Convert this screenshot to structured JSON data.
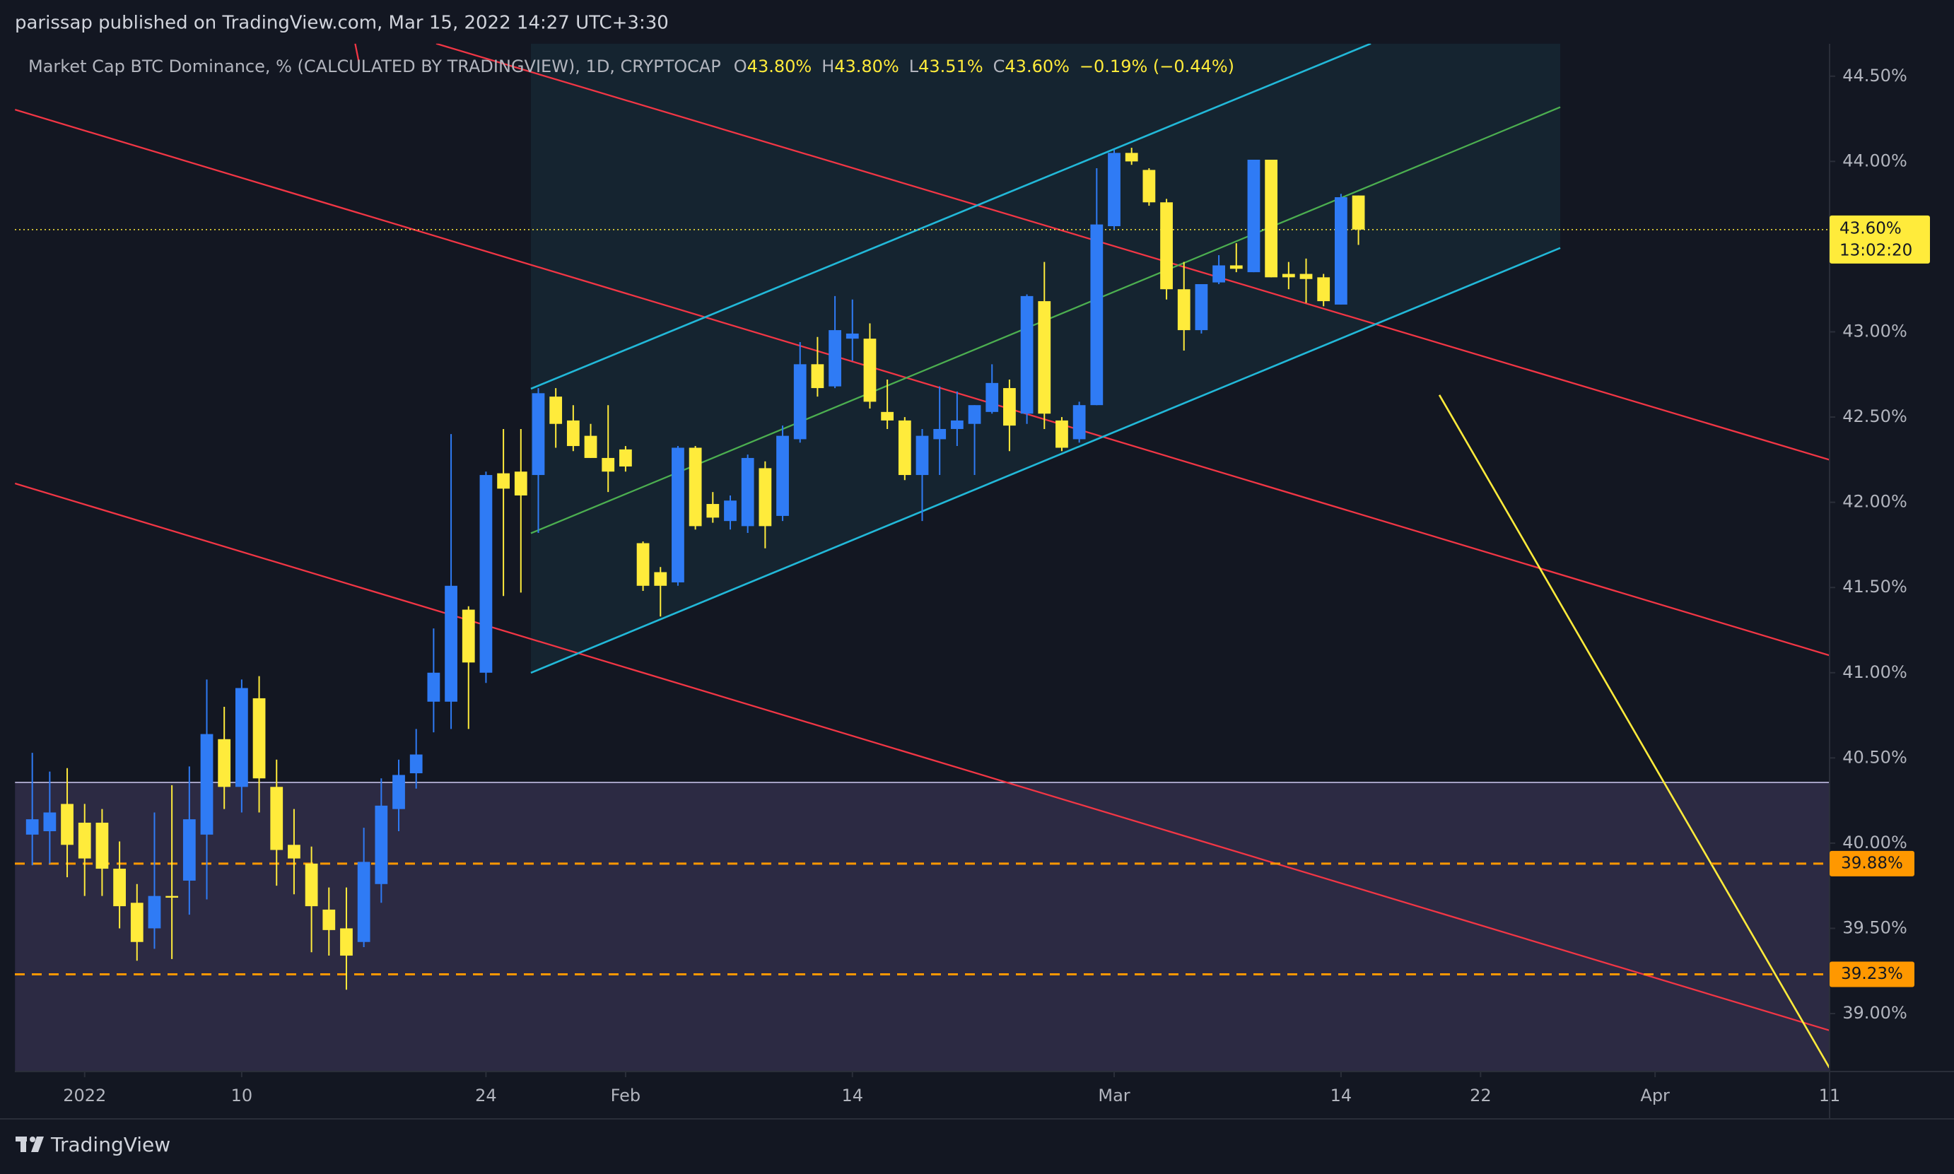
{
  "header": "parissap published on TradingView.com, Mar 15, 2022 14:27 UTC+3:30",
  "footer": "TradingView",
  "chart_data": {
    "type": "candlestick",
    "title": "Market Cap BTC Dominance, % (CALCULATED BY TRADINGVIEW), 1D, CRYPTOCAP",
    "legend": [
      {
        "key": "O",
        "value": "43.80%"
      },
      {
        "key": "H",
        "value": "43.80%"
      },
      {
        "key": "L",
        "value": "43.51%"
      },
      {
        "key": "C",
        "value": "43.60%"
      }
    ],
    "change": "−0.19% (−0.44%)",
    "x": [
      "2021-12-29",
      "2021-12-30",
      "2021-12-31",
      "2022-01-01",
      "2022-01-02",
      "2022-01-03",
      "2022-01-04",
      "2022-01-05",
      "2022-01-06",
      "2022-01-07",
      "2022-01-08",
      "2022-01-09",
      "2022-01-10",
      "2022-01-11",
      "2022-01-12",
      "2022-01-13",
      "2022-01-14",
      "2022-01-15",
      "2022-01-16",
      "2022-01-17",
      "2022-01-18",
      "2022-01-19",
      "2022-01-20",
      "2022-01-21",
      "2022-01-22",
      "2022-01-23",
      "2022-01-24",
      "2022-01-25",
      "2022-01-26",
      "2022-01-27",
      "2022-01-28",
      "2022-01-29",
      "2022-01-30",
      "2022-01-31",
      "2022-02-01",
      "2022-02-02",
      "2022-02-03",
      "2022-02-04",
      "2022-02-05",
      "2022-02-06",
      "2022-02-07",
      "2022-02-08",
      "2022-02-09",
      "2022-02-10",
      "2022-02-11",
      "2022-02-12",
      "2022-02-13",
      "2022-02-14",
      "2022-02-15",
      "2022-02-16",
      "2022-02-17",
      "2022-02-18",
      "2022-02-19",
      "2022-02-20",
      "2022-02-21",
      "2022-02-22",
      "2022-02-23",
      "2022-02-24",
      "2022-02-25",
      "2022-02-26",
      "2022-02-27",
      "2022-02-28",
      "2022-03-01",
      "2022-03-02",
      "2022-03-03",
      "2022-03-04",
      "2022-03-05",
      "2022-03-06",
      "2022-03-07",
      "2022-03-08",
      "2022-03-09",
      "2022-03-10",
      "2022-03-11",
      "2022-03-12",
      "2022-03-13",
      "2022-03-14",
      "2022-03-15"
    ],
    "open": [
      40.05,
      40.07,
      40.23,
      40.12,
      40.12,
      39.85,
      39.65,
      39.5,
      39.69,
      39.78,
      40.05,
      40.61,
      40.33,
      40.85,
      40.33,
      39.99,
      39.88,
      39.61,
      39.5,
      39.42,
      39.76,
      40.2,
      40.41,
      40.83,
      40.83,
      41.37,
      41.0,
      42.17,
      42.18,
      42.16,
      42.62,
      42.48,
      42.39,
      42.26,
      42.31,
      41.76,
      41.59,
      41.53,
      42.32,
      41.99,
      41.89,
      41.86,
      42.2,
      41.92,
      42.37,
      42.81,
      42.68,
      42.96,
      42.96,
      42.53,
      42.48,
      42.16,
      42.37,
      42.43,
      42.46,
      42.53,
      42.67,
      42.52,
      43.18,
      42.48,
      42.37,
      42.57,
      43.62,
      44.05,
      43.95,
      43.76,
      43.25,
      43.01,
      43.29,
      43.39,
      43.35,
      44.01,
      43.34,
      43.34,
      43.32,
      43.16,
      43.8
    ],
    "high": [
      40.53,
      40.42,
      40.44,
      40.23,
      40.2,
      40.01,
      39.76,
      40.18,
      40.34,
      40.45,
      40.96,
      40.8,
      40.96,
      40.98,
      40.49,
      40.2,
      39.98,
      39.74,
      39.74,
      40.09,
      40.38,
      40.49,
      40.67,
      41.26,
      42.4,
      41.39,
      42.18,
      42.43,
      42.43,
      42.67,
      42.67,
      42.57,
      42.46,
      42.57,
      42.33,
      41.77,
      41.62,
      42.33,
      42.33,
      42.06,
      42.04,
      42.28,
      42.24,
      42.45,
      42.94,
      42.97,
      43.21,
      43.19,
      43.05,
      42.72,
      42.5,
      42.43,
      42.68,
      42.65,
      42.57,
      42.81,
      42.72,
      43.22,
      43.41,
      42.5,
      42.59,
      43.96,
      44.07,
      44.08,
      43.96,
      43.78,
      43.41,
      43.28,
      43.45,
      43.52,
      44.01,
      44.01,
      43.41,
      43.43,
      43.34,
      43.81,
      43.8
    ],
    "low": [
      39.87,
      39.88,
      39.8,
      39.69,
      39.69,
      39.5,
      39.31,
      39.38,
      39.32,
      39.58,
      39.67,
      40.2,
      40.18,
      40.18,
      39.75,
      39.7,
      39.36,
      39.34,
      39.14,
      39.39,
      39.65,
      40.07,
      40.32,
      40.65,
      40.67,
      40.67,
      40.94,
      41.45,
      41.47,
      41.82,
      42.32,
      42.3,
      42.26,
      42.06,
      42.18,
      41.48,
      41.33,
      41.51,
      41.84,
      41.88,
      41.84,
      41.82,
      41.73,
      41.89,
      42.35,
      42.62,
      42.67,
      42.83,
      42.55,
      42.43,
      42.13,
      41.89,
      42.16,
      42.33,
      42.16,
      42.52,
      42.3,
      42.46,
      42.43,
      42.3,
      42.35,
      42.57,
      43.6,
      43.98,
      43.74,
      43.19,
      42.89,
      42.99,
      43.28,
      43.35,
      43.35,
      43.32,
      43.25,
      43.17,
      43.15,
      43.16,
      43.51
    ],
    "close": [
      40.14,
      40.18,
      39.99,
      39.91,
      39.85,
      39.63,
      39.42,
      39.69,
      39.68,
      40.14,
      40.64,
      40.33,
      40.91,
      40.38,
      39.96,
      39.91,
      39.63,
      39.49,
      39.34,
      39.89,
      40.22,
      40.4,
      40.52,
      41.0,
      41.51,
      41.06,
      42.16,
      42.08,
      42.04,
      42.64,
      42.46,
      42.33,
      42.26,
      42.18,
      42.21,
      41.51,
      41.51,
      42.32,
      41.86,
      41.91,
      42.01,
      42.26,
      41.86,
      42.39,
      42.81,
      42.67,
      43.01,
      42.99,
      42.59,
      42.48,
      42.16,
      42.39,
      42.43,
      42.48,
      42.57,
      42.7,
      42.45,
      43.21,
      42.52,
      42.32,
      42.57,
      43.63,
      44.05,
      44.0,
      43.76,
      43.25,
      43.01,
      43.28,
      43.39,
      43.37,
      44.01,
      43.32,
      43.32,
      43.31,
      43.18,
      43.79,
      43.6
    ],
    "up_color": "#2f7bf5",
    "down_color": "#ffeb3b",
    "xlim": [
      "2021-12-28",
      "2022-04-11"
    ],
    "ylim": [
      38.66,
      44.69
    ],
    "yticks": [
      {
        "value": 39,
        "label": "39.00%"
      },
      {
        "value": 39.5,
        "label": "39.50%"
      },
      {
        "value": 40,
        "label": "40.00%"
      },
      {
        "value": 40.5,
        "label": "40.50%"
      },
      {
        "value": 41,
        "label": "41.00%"
      },
      {
        "value": 41.5,
        "label": "41.50%"
      },
      {
        "value": 42,
        "label": "42.00%"
      },
      {
        "value": 42.5,
        "label": "42.50%"
      },
      {
        "value": 43,
        "label": "43.00%"
      },
      {
        "value": 43.5,
        "label": "43.50%"
      },
      {
        "value": 44,
        "label": "44.00%"
      },
      {
        "value": 44.5,
        "label": "44.50%"
      }
    ],
    "xticks": [
      {
        "value": "2022-01-01",
        "label": "2022"
      },
      {
        "value": "2022-01-10",
        "label": "10"
      },
      {
        "value": "2022-01-24",
        "label": "24"
      },
      {
        "value": "2022-02-01",
        "label": "Feb"
      },
      {
        "value": "2022-02-14",
        "label": "14"
      },
      {
        "value": "2022-03-01",
        "label": "Mar"
      },
      {
        "value": "2022-03-14",
        "label": "14"
      },
      {
        "value": "2022-03-22",
        "label": "22"
      },
      {
        "value": "2022-04-01",
        "label": "Apr"
      },
      {
        "value": "2022-04-11",
        "label": "11"
      }
    ],
    "last_price": {
      "value": 43.6,
      "label": "43.60%",
      "countdown": "13:02:20",
      "color": "#ffeb3b"
    },
    "levels": [
      {
        "value": 39.88,
        "label": "39.88%",
        "color": "#ff9800"
      },
      {
        "value": 39.23,
        "label": "39.23%",
        "color": "#ff9800"
      }
    ]
  }
}
